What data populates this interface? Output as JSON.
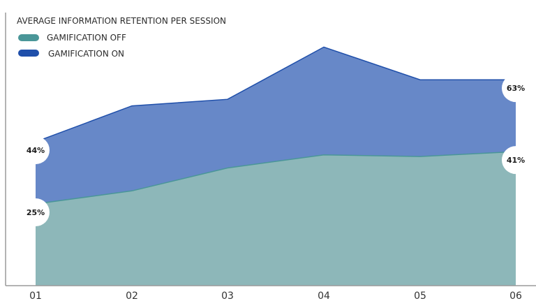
{
  "chart_data": {
    "type": "area",
    "title": "AVERAGE INFORMATION RETENTION PER SESSION",
    "x": [
      "01",
      "02",
      "03",
      "04",
      "05",
      "06"
    ],
    "series": [
      {
        "name": "GAMIFICATION OFF",
        "color": "#4a9698",
        "fill": "#8db7b9",
        "values": [
          25,
          29,
          36,
          40,
          39.5,
          41
        ],
        "point_labels": [
          "25%",
          "",
          "",
          "",
          "",
          "41%"
        ]
      },
      {
        "name": "GAMIFICATION ON",
        "color": "#1f4faa",
        "fill": "#6788c8",
        "values": [
          44,
          55,
          57,
          73,
          63,
          63
        ],
        "point_labels": [
          "44%",
          "",
          "",
          "",
          "",
          "63%"
        ]
      }
    ],
    "ylim": [
      0,
      75
    ],
    "stacked": false,
    "grid": false,
    "legend_position": "top-left"
  }
}
